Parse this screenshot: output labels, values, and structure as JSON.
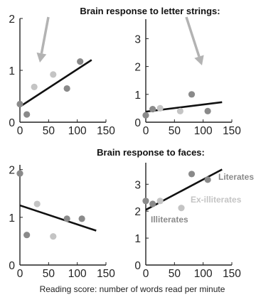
{
  "figure": {
    "title_letters": "Brain response to letter strings:",
    "title_faces": "Brain response to faces:",
    "xlabel": "Reading score: number of words read per minute"
  },
  "colors": {
    "literate": "#8a8a8a",
    "ex_illiterate": "#c4c4c4",
    "illiterate": "#8a8a8a",
    "fit_line": "#111111",
    "arrow": "#b3b3b3"
  },
  "chart_data": [
    {
      "id": "letters_left",
      "type": "scatter",
      "xlim": [
        0,
        150
      ],
      "ylim": [
        0,
        2
      ],
      "xticks": [
        0,
        50,
        100,
        150
      ],
      "yticks": [
        0,
        1,
        2
      ],
      "annotation": "arrow pointing down",
      "points": [
        {
          "x": 0,
          "y": 0.35,
          "group": "illiterate"
        },
        {
          "x": 12,
          "y": 0.15,
          "group": "illiterate"
        },
        {
          "x": 25,
          "y": 0.68,
          "group": "ex_illiterate"
        },
        {
          "x": 58,
          "y": 0.92,
          "group": "ex_illiterate"
        },
        {
          "x": 82,
          "y": 0.65,
          "group": "literate"
        },
        {
          "x": 105,
          "y": 1.17,
          "group": "literate"
        }
      ],
      "fit": {
        "x": [
          0,
          125
        ],
        "y": [
          0.3,
          1.2
        ]
      }
    },
    {
      "id": "letters_right",
      "type": "scatter",
      "xlim": [
        0,
        150
      ],
      "ylim": [
        0,
        3.7
      ],
      "xticks": [
        0,
        50,
        100,
        150
      ],
      "yticks": [
        0,
        1,
        2,
        3
      ],
      "annotation": "arrow pointing down",
      "points": [
        {
          "x": 0,
          "y": 0.25,
          "group": "illiterate"
        },
        {
          "x": 12,
          "y": 0.47,
          "group": "illiterate"
        },
        {
          "x": 25,
          "y": 0.5,
          "group": "ex_illiterate"
        },
        {
          "x": 60,
          "y": 0.4,
          "group": "ex_illiterate"
        },
        {
          "x": 80,
          "y": 1.0,
          "group": "literate"
        },
        {
          "x": 108,
          "y": 0.4,
          "group": "literate"
        }
      ],
      "fit": {
        "x": [
          0,
          133
        ],
        "y": [
          0.38,
          0.72
        ]
      }
    },
    {
      "id": "faces_left",
      "type": "scatter",
      "xlim": [
        0,
        150
      ],
      "ylim": [
        0,
        2.1
      ],
      "xticks": [
        0,
        50,
        100,
        150
      ],
      "yticks": [
        0,
        1,
        2
      ],
      "points": [
        {
          "x": 0,
          "y": 1.92,
          "group": "illiterate"
        },
        {
          "x": 12,
          "y": 0.63,
          "group": "illiterate"
        },
        {
          "x": 30,
          "y": 1.28,
          "group": "ex_illiterate"
        },
        {
          "x": 58,
          "y": 0.6,
          "group": "ex_illiterate"
        },
        {
          "x": 82,
          "y": 0.97,
          "group": "literate"
        },
        {
          "x": 108,
          "y": 0.97,
          "group": "literate"
        }
      ],
      "fit": {
        "x": [
          0,
          133
        ],
        "y": [
          1.25,
          0.72
        ]
      }
    },
    {
      "id": "faces_right",
      "type": "scatter",
      "xlim": [
        0,
        150
      ],
      "ylim": [
        0,
        3.8
      ],
      "xticks": [
        0,
        50,
        100,
        150
      ],
      "yticks": [
        0,
        1,
        2,
        3
      ],
      "legend_labels": {
        "literate": "Literates",
        "ex_illiterate": "Ex-illiterates",
        "illiterate": "Illiterates"
      },
      "points": [
        {
          "x": 0,
          "y": 2.38,
          "group": "illiterate"
        },
        {
          "x": 12,
          "y": 2.27,
          "group": "illiterate"
        },
        {
          "x": 25,
          "y": 2.38,
          "group": "ex_illiterate"
        },
        {
          "x": 62,
          "y": 2.12,
          "group": "ex_illiterate"
        },
        {
          "x": 80,
          "y": 3.38,
          "group": "literate"
        },
        {
          "x": 108,
          "y": 3.17,
          "group": "literate"
        }
      ],
      "fit": {
        "x": [
          0,
          133
        ],
        "y": [
          2.05,
          3.55
        ]
      }
    }
  ]
}
